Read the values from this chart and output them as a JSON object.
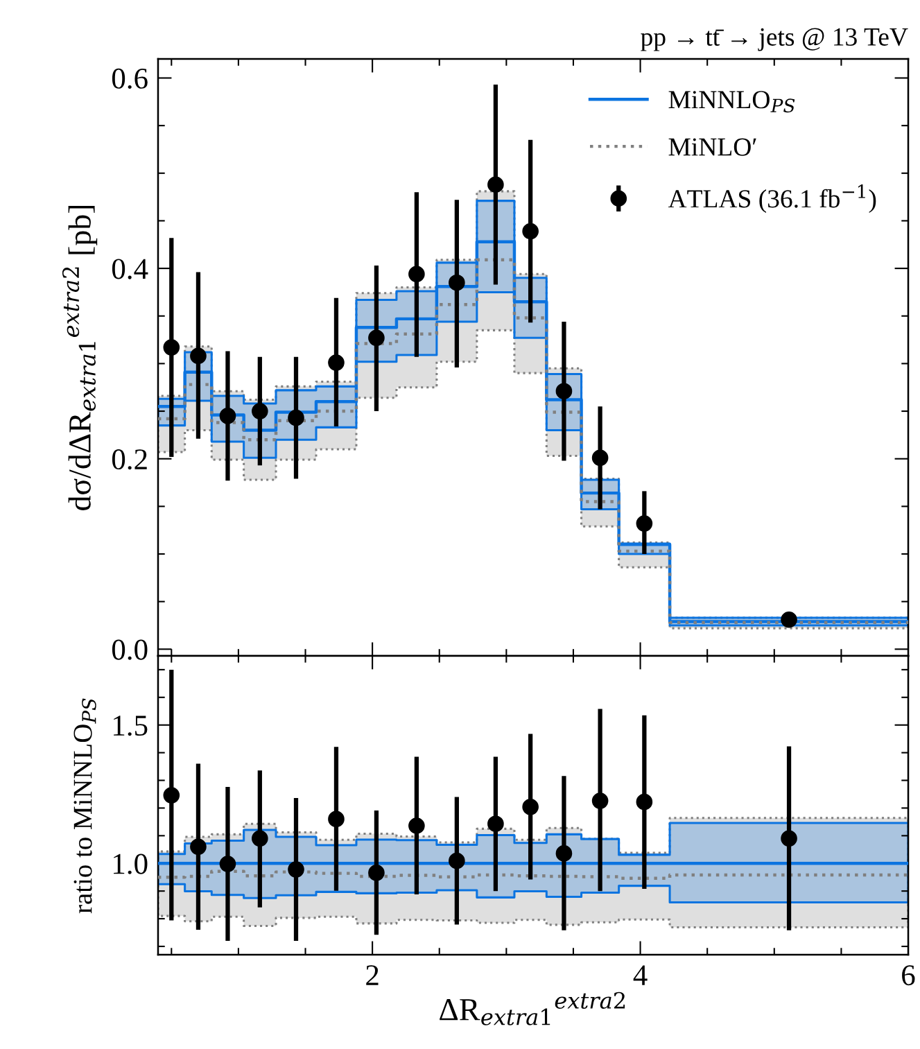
{
  "chart_data": [
    {
      "type": "step",
      "title": "pp → tt̄ → jets @ 13 TeV",
      "ylabel": "dσ/dΔR$_{extra1}$$^{extra2}$ [pb]",
      "xlim": [
        0.4,
        6
      ],
      "ylim": [
        -0.007,
        0.62
      ],
      "tick_labels": "y",
      "grid": false,
      "legend": "top right",
      "xticks": [
        {
          "value": 0.5,
          "label": null
        },
        {
          "value": 1,
          "label": null
        },
        {
          "value": 1.5,
          "label": null
        },
        2,
        {
          "value": 2.5,
          "label": null
        },
        {
          "value": 3,
          "label": null
        },
        {
          "value": 3.5,
          "label": null
        },
        4,
        {
          "value": 4.5,
          "label": null
        },
        {
          "value": 5,
          "label": null
        },
        {
          "value": 5.5,
          "label": null
        },
        6
      ],
      "yticks": [
        {
          "value": 0,
          "label": "0.0"
        },
        {
          "value": 0.05,
          "label": null
        },
        {
          "value": 0.1,
          "label": null
        },
        {
          "value": 0.15,
          "label": null
        },
        0.2,
        {
          "value": 0.25,
          "label": null
        },
        {
          "value": 0.3,
          "label": null
        },
        {
          "value": 0.35,
          "label": null
        },
        0.4,
        {
          "value": 0.45,
          "label": null
        },
        {
          "value": 0.5,
          "label": null
        },
        {
          "value": 0.55,
          "label": null
        },
        0.6
      ],
      "series": [
        {
          "name": "MiNNLO$_{PS}$",
          "color": "#0c74e0",
          "line_style": "solid",
          "x": [
            0.4,
            0.6,
            0.8,
            1.04,
            1.28,
            1.58,
            1.88,
            2.18,
            2.48,
            2.78,
            3.06,
            3.3,
            3.56,
            3.84,
            4.22,
            6
          ],
          "values": [
            0.255,
            0.291,
            0.246,
            0.23,
            0.249,
            0.26,
            0.338,
            0.347,
            0.381,
            0.428,
            0.365,
            0.262,
            0.164,
            0.11,
            0.029,
            0.029
          ],
          "lower": [
            0.235,
            0.261,
            0.218,
            0.201,
            0.22,
            0.233,
            0.302,
            0.309,
            0.344,
            0.375,
            0.327,
            0.23,
            0.147,
            0.1,
            0.025,
            0.025
          ],
          "upper": [
            0.263,
            0.312,
            0.266,
            0.258,
            0.272,
            0.276,
            0.367,
            0.376,
            0.406,
            0.471,
            0.39,
            0.289,
            0.178,
            0.111,
            0.033,
            0.033
          ]
        },
        {
          "name": "MiNLO′",
          "color": "#808080",
          "line_style": "dotted",
          "x": [
            0.4,
            0.6,
            0.8,
            1.04,
            1.28,
            1.58,
            1.88,
            2.18,
            2.48,
            2.78,
            3.06,
            3.3,
            3.56,
            3.84,
            4.22,
            6
          ],
          "values": [
            0.242,
            0.278,
            0.238,
            0.22,
            0.24,
            0.25,
            0.321,
            0.331,
            0.362,
            0.409,
            0.348,
            0.249,
            0.155,
            0.103,
            0.028,
            0.028
          ],
          "lower": [
            0.207,
            0.23,
            0.199,
            0.178,
            0.199,
            0.21,
            0.264,
            0.275,
            0.302,
            0.335,
            0.29,
            0.203,
            0.129,
            0.086,
            0.022,
            0.022
          ],
          "upper": [
            0.266,
            0.318,
            0.271,
            0.262,
            0.276,
            0.281,
            0.374,
            0.38,
            0.409,
            0.481,
            0.394,
            0.295,
            0.179,
            0.112,
            0.033,
            0.033
          ]
        },
        {
          "name": "ATLAS (36.1 fb$^{−1}$)",
          "type": "scatter",
          "color": "#000000",
          "marker": "circle",
          "x": [
            0.5,
            0.7,
            0.92,
            1.16,
            1.43,
            1.73,
            2.03,
            2.33,
            2.63,
            2.92,
            3.18,
            3.43,
            3.7,
            4.03,
            5.11
          ],
          "values": [
            0.317,
            0.308,
            0.245,
            0.25,
            0.243,
            0.301,
            0.327,
            0.394,
            0.385,
            0.488,
            0.439,
            0.271,
            0.201,
            0.132,
            0.031
          ],
          "errors": [
            [
              0.202,
              0.432
            ],
            [
              0.221,
              0.396
            ],
            [
              0.177,
              0.313
            ],
            [
              0.193,
              0.307
            ],
            [
              0.179,
              0.307
            ],
            [
              0.234,
              0.369
            ],
            [
              0.25,
              0.403
            ],
            [
              0.307,
              0.48
            ],
            [
              0.296,
              0.472
            ],
            [
              0.383,
              0.593
            ],
            [
              0.343,
              0.535
            ],
            [
              0.198,
              0.344
            ],
            [
              0.147,
              0.255
            ],
            [
              0.1,
              0.166
            ],
            [
              0.027,
              0.035
            ]
          ]
        }
      ]
    },
    {
      "type": "step",
      "xlabel": "ΔR$_{extra1}$$^{extra2}$",
      "ylabel": "ratio to MiNNLO$_{PS}$",
      "xlim": [
        0.4,
        6
      ],
      "ylim": [
        0.67,
        1.75
      ],
      "grid": false,
      "xticks": [
        {
          "value": 0.5,
          "label": null
        },
        {
          "value": 1,
          "label": null
        },
        {
          "value": 1.5,
          "label": null
        },
        2,
        {
          "value": 2.5,
          "label": null
        },
        {
          "value": 3,
          "label": null
        },
        {
          "value": 3.5,
          "label": null
        },
        4,
        {
          "value": 4.5,
          "label": null
        },
        {
          "value": 5,
          "label": null
        },
        {
          "value": 5.5,
          "label": null
        },
        6
      ],
      "yticks": [
        {
          "value": 0.7,
          "label": null
        },
        {
          "value": 0.8,
          "label": null
        },
        {
          "value": 0.9,
          "label": null
        },
        {
          "value": 1,
          "label": "1.0"
        },
        {
          "value": 1.1,
          "label": null
        },
        {
          "value": 1.2,
          "label": null
        },
        {
          "value": 1.3,
          "label": null
        },
        {
          "value": 1.4,
          "label": null
        },
        1.5,
        {
          "value": 1.6,
          "label": null
        },
        {
          "value": 1.7,
          "label": null
        }
      ],
      "series": [
        {
          "color": "#0c74e0",
          "line_style": "solid",
          "x": [
            0.4,
            0.6,
            0.8,
            1.04,
            1.28,
            1.58,
            1.88,
            2.18,
            2.48,
            2.78,
            3.06,
            3.3,
            3.56,
            3.84,
            4.22,
            6
          ],
          "values": [
            1,
            1,
            1,
            1,
            1,
            1,
            1,
            1,
            1,
            1,
            1,
            1,
            1,
            1,
            1,
            1
          ],
          "lower": [
            0.925,
            0.899,
            0.886,
            0.875,
            0.885,
            0.897,
            0.892,
            0.894,
            0.903,
            0.877,
            0.899,
            0.879,
            0.894,
            0.919,
            0.859,
            0.859
          ],
          "upper": [
            1.034,
            1.072,
            1.082,
            1.121,
            1.096,
            1.066,
            1.086,
            1.084,
            1.067,
            1.102,
            1.074,
            1.105,
            1.088,
            1.031,
            1.146,
            1.146
          ]
        },
        {
          "color": "#808080",
          "line_style": "dotted",
          "x": [
            0.4,
            0.6,
            0.8,
            1.04,
            1.28,
            1.58,
            1.88,
            2.18,
            2.48,
            2.78,
            3.06,
            3.3,
            3.56,
            3.84,
            4.22,
            6
          ],
          "values": [
            0.95,
            0.953,
            0.971,
            0.955,
            0.969,
            0.964,
            0.953,
            0.957,
            0.951,
            0.958,
            0.955,
            0.953,
            0.952,
            0.946,
            0.958,
            0.958
          ],
          "lower": [
            0.81,
            0.791,
            0.807,
            0.774,
            0.803,
            0.807,
            0.783,
            0.796,
            0.794,
            0.785,
            0.796,
            0.778,
            0.787,
            0.797,
            0.769,
            0.769
          ],
          "upper": [
            1.043,
            1.096,
            1.105,
            1.143,
            1.112,
            1.085,
            1.107,
            1.097,
            1.076,
            1.125,
            1.085,
            1.128,
            1.089,
            1.038,
            1.164,
            1.164
          ]
        },
        {
          "type": "scatter",
          "color": "#000000",
          "marker": "circle",
          "x": [
            0.5,
            0.7,
            0.92,
            1.16,
            1.43,
            1.73,
            2.03,
            2.33,
            2.63,
            2.92,
            3.18,
            3.43,
            3.7,
            4.03,
            5.11
          ],
          "values": [
            1.246,
            1.06,
            0.998,
            1.09,
            0.978,
            1.16,
            0.966,
            1.136,
            1.009,
            1.143,
            1.204,
            1.036,
            1.226,
            1.222,
            1.09
          ],
          "errors": [
            [
              0.794,
              1.7
            ],
            [
              0.76,
              1.36
            ],
            [
              0.72,
              1.276
            ],
            [
              0.841,
              1.336
            ],
            [
              0.72,
              1.236
            ],
            [
              0.901,
              1.421
            ],
            [
              0.742,
              1.191
            ],
            [
              0.888,
              1.385
            ],
            [
              0.779,
              1.24
            ],
            [
              0.9,
              1.385
            ],
            [
              0.942,
              1.468
            ],
            [
              0.758,
              1.316
            ],
            [
              0.9,
              1.558
            ],
            [
              0.908,
              1.535
            ],
            [
              0.758,
              1.423
            ]
          ]
        }
      ]
    }
  ]
}
